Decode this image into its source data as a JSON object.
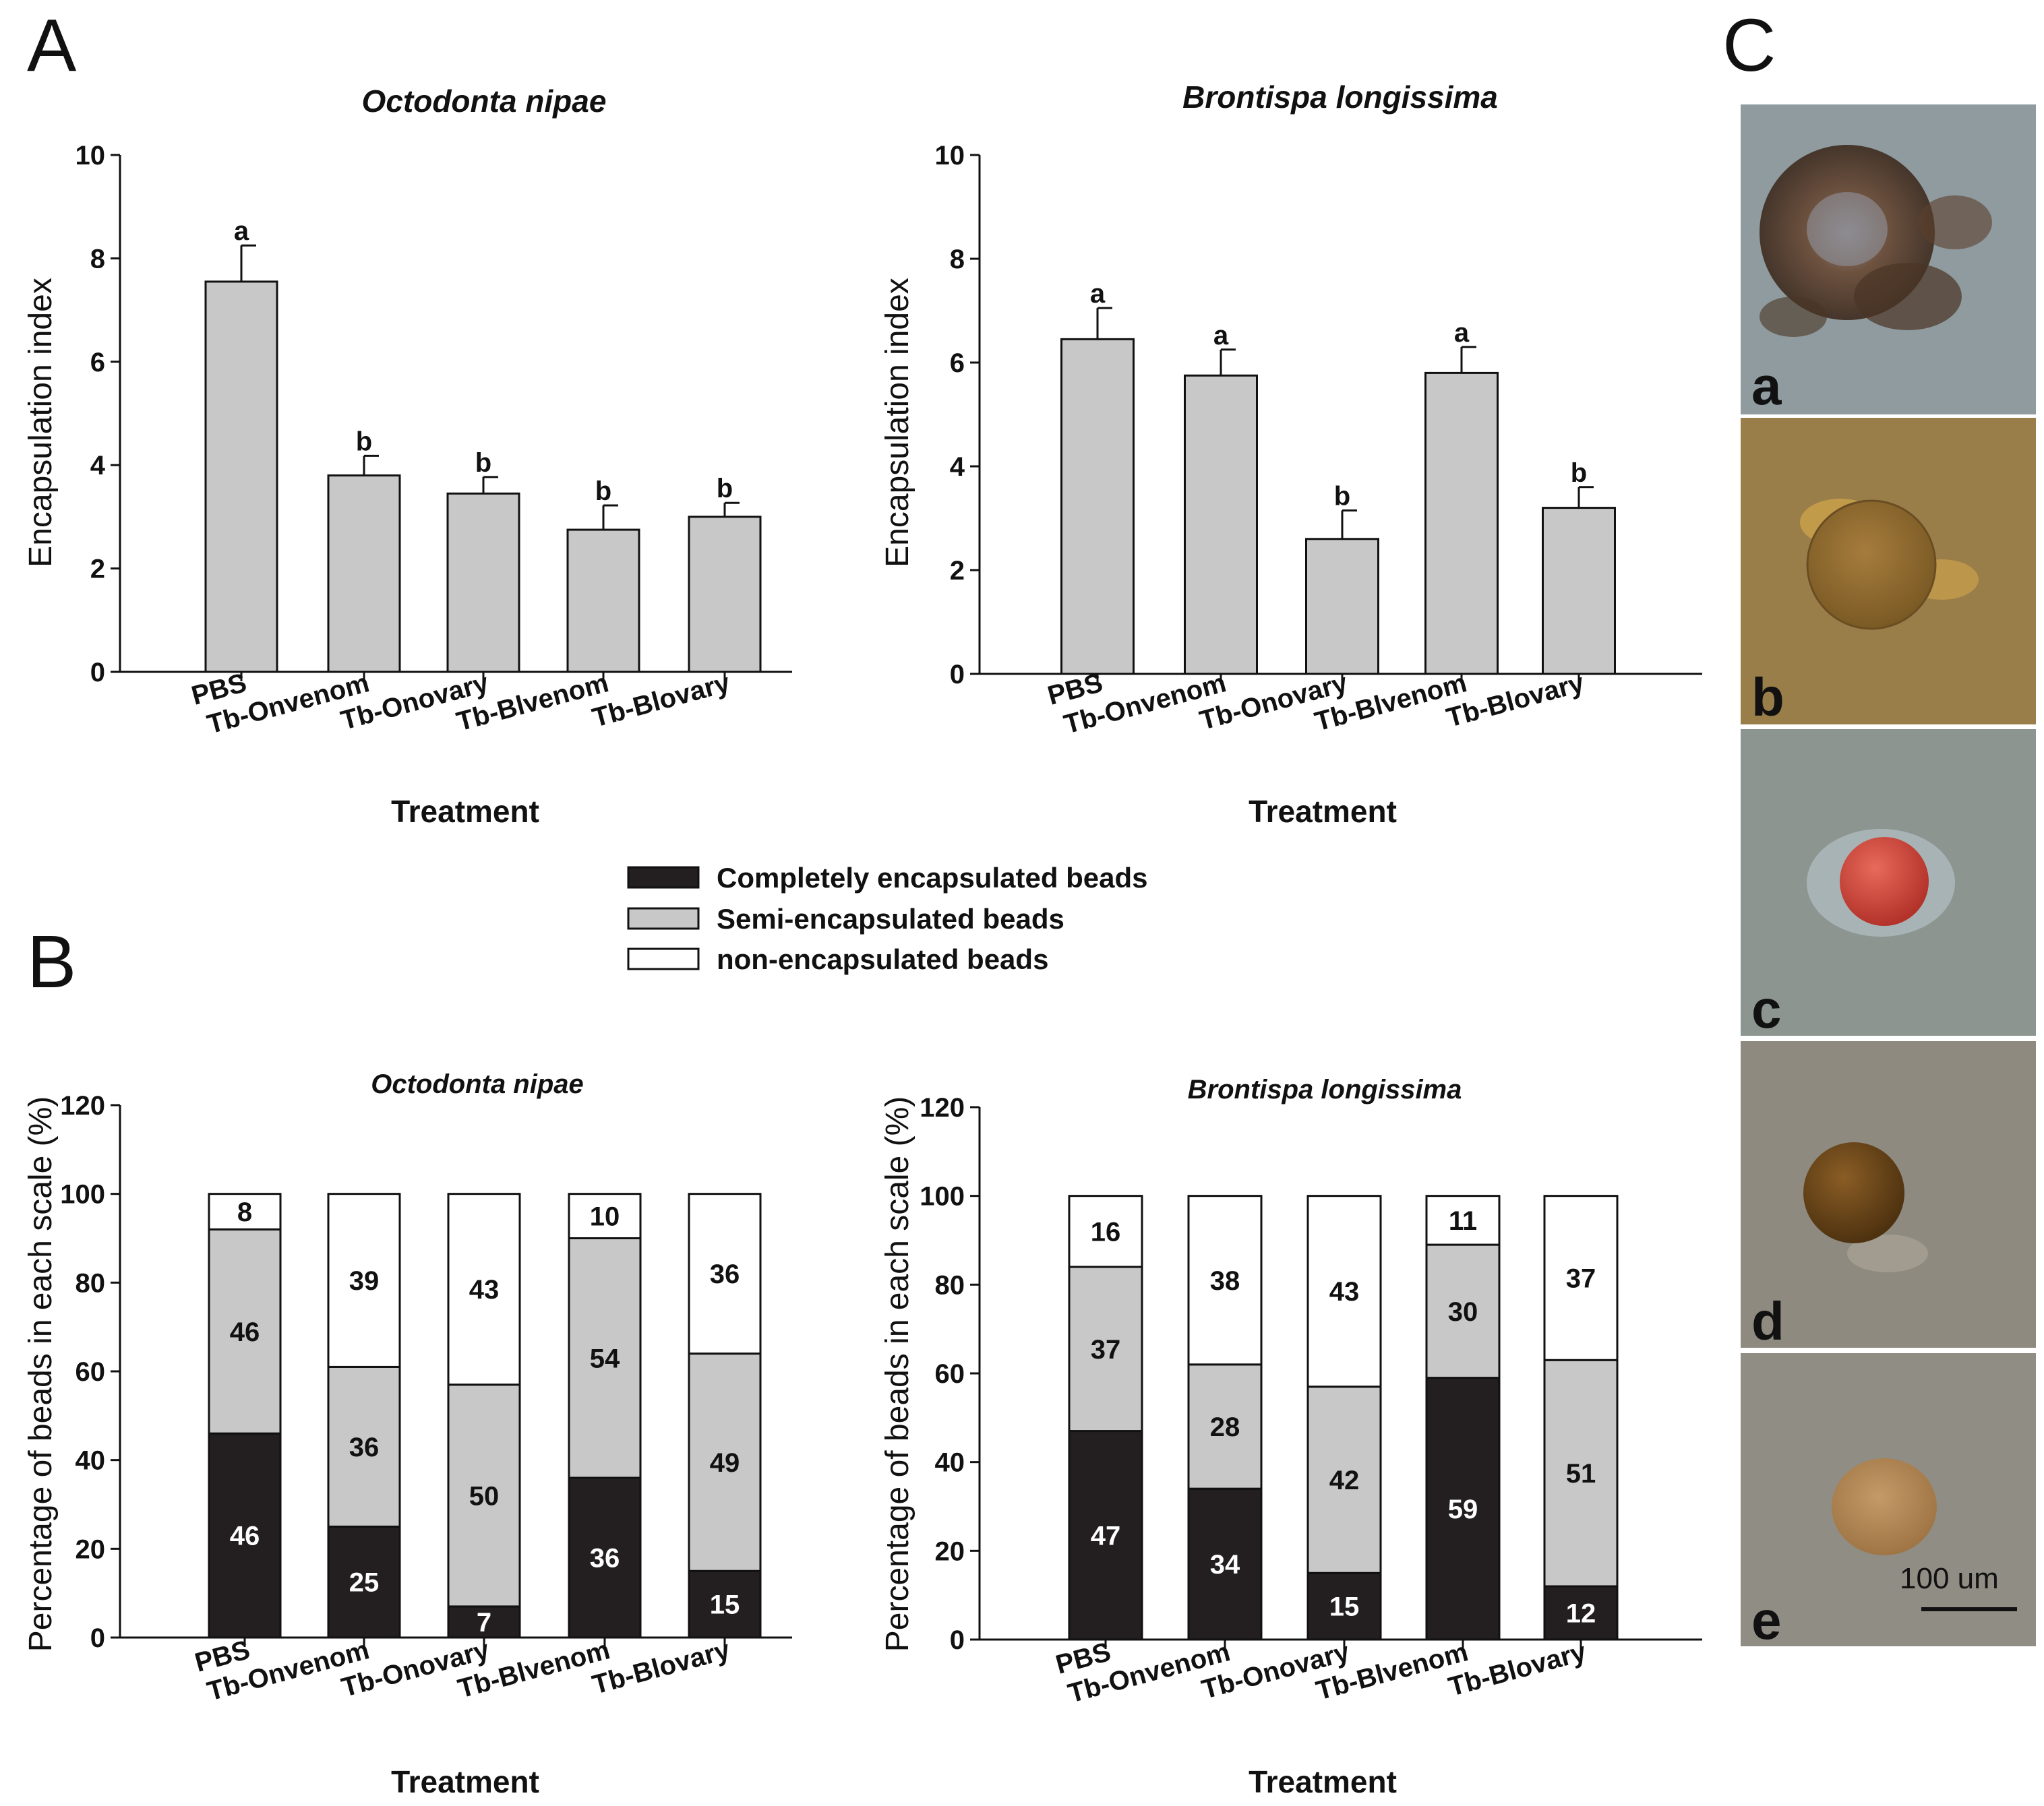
{
  "panel_labels": {
    "A": "A",
    "B": "B",
    "C": "C"
  },
  "colors": {
    "bar_gray": "#c8c8c8",
    "complete": "#231f20",
    "semi": "#c8c8c8",
    "none": "#ffffff",
    "axis": "#111111"
  },
  "legend": {
    "items": [
      {
        "label": "Completely encapsulated beads",
        "color": "#231f20"
      },
      {
        "label": "Semi-encapsulated beads",
        "color": "#c8c8c8"
      },
      {
        "label": "non-encapsulated beads",
        "color": "#ffffff"
      }
    ]
  },
  "chart_data": [
    {
      "id": "A1",
      "type": "bar",
      "title": "Octodonta  nipae",
      "xlabel": "Treatment",
      "ylabel": "Encapsulation index",
      "ylim": [
        0,
        10
      ],
      "yticks": [
        "0",
        "2",
        "4",
        "6",
        "8",
        "10"
      ],
      "categories": [
        "PBS",
        "Tb-Onvenom",
        "Tb-Onovary",
        "Tb-Blvenom",
        "Tb-Blovary"
      ],
      "values": [
        7.55,
        3.8,
        3.45,
        2.75,
        3.0
      ],
      "errors": [
        0.7,
        0.38,
        0.32,
        0.47,
        0.27
      ],
      "significance": [
        "a",
        "b",
        "b",
        "b",
        "b"
      ]
    },
    {
      "id": "A2",
      "type": "bar",
      "title": "Brontispa  longissima",
      "xlabel": "Treatment",
      "ylabel": "Encapsulation index",
      "ylim": [
        0,
        10
      ],
      "yticks": [
        "0",
        "2",
        "4",
        "6",
        "8",
        "10"
      ],
      "categories": [
        "PBS",
        "Tb-Onvenom",
        "Tb-Onovary",
        "Tb-Blvenom",
        "Tb-Blovary"
      ],
      "values": [
        6.45,
        5.75,
        2.6,
        5.8,
        3.2
      ],
      "errors": [
        0.6,
        0.5,
        0.55,
        0.5,
        0.4
      ],
      "significance": [
        "a",
        "a",
        "b",
        "a",
        "b"
      ]
    },
    {
      "id": "B1",
      "type": "bar",
      "stacked": true,
      "title": "Octodonta  nipae",
      "xlabel": "Treatment",
      "ylabel": "Percentage of beads in each scale (%)",
      "ylim": [
        0,
        120
      ],
      "yticks": [
        "0",
        "20",
        "40",
        "60",
        "80",
        "100",
        "120"
      ],
      "categories": [
        "PBS",
        "Tb-Onvenom",
        "Tb-Onovary",
        "Tb-Blvenom",
        "Tb-Blovary"
      ],
      "series": [
        {
          "name": "Completely encapsulated beads",
          "values": [
            46,
            25,
            7,
            36,
            15
          ],
          "labels": [
            "46",
            "25",
            "7",
            "36",
            "15"
          ]
        },
        {
          "name": "Semi-encapsulated beads",
          "values": [
            46,
            36,
            50,
            54,
            49
          ],
          "labels": [
            "46",
            "36",
            "50",
            "54",
            "49"
          ]
        },
        {
          "name": "non-encapsulated beads",
          "values": [
            8,
            39,
            43,
            10,
            36
          ],
          "labels": [
            "8",
            "39",
            "43",
            "10",
            "36"
          ]
        }
      ]
    },
    {
      "id": "B2",
      "type": "bar",
      "stacked": true,
      "title": "Brontispa  longissima",
      "xlabel": "Treatment",
      "ylabel": "Percentage of beads in each scale (%)",
      "ylim": [
        0,
        120
      ],
      "yticks": [
        "0",
        "20",
        "40",
        "60",
        "80",
        "100",
        "120"
      ],
      "categories": [
        "PBS",
        "Tb-Onvenom",
        "Tb-Onovary",
        "Tb-Blvenom",
        "Tb-Blovary"
      ],
      "series": [
        {
          "name": "Completely encapsulated beads",
          "values": [
            47,
            34,
            15,
            59,
            12
          ],
          "labels": [
            "47",
            "34",
            "15",
            "59",
            "12"
          ]
        },
        {
          "name": "Semi-encapsulated beads",
          "values": [
            37,
            28,
            42,
            30,
            51
          ],
          "labels": [
            "37",
            "28",
            "42",
            "30",
            "51"
          ]
        },
        {
          "name": "non-encapsulated beads",
          "values": [
            16,
            38,
            43,
            11,
            37
          ],
          "labels": [
            "16",
            "38",
            "43",
            "11",
            "37"
          ]
        }
      ]
    }
  ],
  "micrographs": {
    "labels": [
      "a",
      "b",
      "c",
      "d",
      "e"
    ],
    "scale_bar": "100 um",
    "icon": "microscopy-image"
  }
}
